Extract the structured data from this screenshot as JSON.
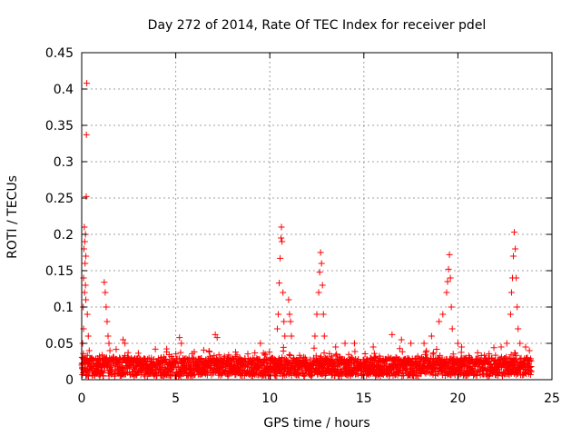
{
  "chart_data": {
    "type": "scatter",
    "title": "Day 272 of 2014, Rate Of TEC Index for receiver pdel",
    "xlabel": "GPS time / hours",
    "ylabel": "ROTI / TECUs",
    "xlim": [
      0,
      25
    ],
    "ylim": [
      0,
      0.45
    ],
    "xticks": [
      0,
      5,
      10,
      15,
      20,
      25
    ],
    "xtick_labels": [
      "0",
      "5",
      "10",
      "15",
      "20",
      "25"
    ],
    "yticks": [
      0,
      0.05,
      0.1,
      0.15,
      0.2,
      0.25,
      0.3,
      0.35,
      0.4,
      0.45
    ],
    "ytick_labels": [
      "0",
      "0.05",
      "0.1",
      "0.15",
      "0.2",
      "0.25",
      "0.3",
      "0.35",
      "0.4",
      "0.45"
    ],
    "grid": true,
    "marker": "+",
    "color": "#ff0000",
    "data_range_x": [
      0,
      23.9
    ],
    "baseline_band": [
      0.005,
      0.03
    ],
    "series": [
      {
        "name": "ROTI",
        "points": [
          [
            0.0,
            0.02
          ],
          [
            0.05,
            0.05
          ],
          [
            0.08,
            0.1
          ],
          [
            0.1,
            0.14
          ],
          [
            0.12,
            0.18
          ],
          [
            0.14,
            0.21
          ],
          [
            0.16,
            0.19
          ],
          [
            0.18,
            0.16
          ],
          [
            0.2,
            0.13
          ],
          [
            0.22,
            0.11
          ],
          [
            0.24,
            0.252
          ],
          [
            0.25,
            0.337
          ],
          [
            0.27,
            0.408
          ],
          [
            0.3,
            0.09
          ],
          [
            0.35,
            0.06
          ],
          [
            0.4,
            0.04
          ],
          [
            0.1,
            0.07
          ],
          [
            0.15,
            0.12
          ],
          [
            0.2,
            0.2
          ],
          [
            0.22,
            0.17
          ],
          [
            1.2,
            0.134
          ],
          [
            1.25,
            0.12
          ],
          [
            1.3,
            0.1
          ],
          [
            1.35,
            0.08
          ],
          [
            1.4,
            0.06
          ],
          [
            1.45,
            0.05
          ],
          [
            1.5,
            0.04
          ],
          [
            2.2,
            0.055
          ],
          [
            2.3,
            0.05
          ],
          [
            5.2,
            0.058
          ],
          [
            5.3,
            0.05
          ],
          [
            7.1,
            0.062
          ],
          [
            7.2,
            0.058
          ],
          [
            9.5,
            0.05
          ],
          [
            10.4,
            0.07
          ],
          [
            10.45,
            0.09
          ],
          [
            10.5,
            0.133
          ],
          [
            10.55,
            0.167
          ],
          [
            10.6,
            0.195
          ],
          [
            10.62,
            0.21
          ],
          [
            10.65,
            0.19
          ],
          [
            10.7,
            0.12
          ],
          [
            10.75,
            0.08
          ],
          [
            10.8,
            0.06
          ],
          [
            11.0,
            0.11
          ],
          [
            11.05,
            0.09
          ],
          [
            11.1,
            0.08
          ],
          [
            11.15,
            0.06
          ],
          [
            12.4,
            0.06
          ],
          [
            12.5,
            0.09
          ],
          [
            12.6,
            0.12
          ],
          [
            12.65,
            0.148
          ],
          [
            12.7,
            0.175
          ],
          [
            12.75,
            0.16
          ],
          [
            12.8,
            0.13
          ],
          [
            12.85,
            0.09
          ],
          [
            12.9,
            0.06
          ],
          [
            13.5,
            0.045
          ],
          [
            14.0,
            0.05
          ],
          [
            14.5,
            0.05
          ],
          [
            15.5,
            0.045
          ],
          [
            16.5,
            0.062
          ],
          [
            17.0,
            0.055
          ],
          [
            17.5,
            0.05
          ],
          [
            18.2,
            0.05
          ],
          [
            18.6,
            0.06
          ],
          [
            19.0,
            0.08
          ],
          [
            19.2,
            0.09
          ],
          [
            19.4,
            0.12
          ],
          [
            19.45,
            0.135
          ],
          [
            19.5,
            0.152
          ],
          [
            19.55,
            0.172
          ],
          [
            19.6,
            0.14
          ],
          [
            19.65,
            0.1
          ],
          [
            19.7,
            0.07
          ],
          [
            20.0,
            0.05
          ],
          [
            20.2,
            0.045
          ],
          [
            22.3,
            0.045
          ],
          [
            22.6,
            0.05
          ],
          [
            22.8,
            0.09
          ],
          [
            22.85,
            0.12
          ],
          [
            22.9,
            0.14
          ],
          [
            22.95,
            0.17
          ],
          [
            23.0,
            0.203
          ],
          [
            23.05,
            0.18
          ],
          [
            23.1,
            0.14
          ],
          [
            23.15,
            0.1
          ],
          [
            23.2,
            0.07
          ],
          [
            23.3,
            0.05
          ],
          [
            23.6,
            0.045
          ],
          [
            23.8,
            0.04
          ]
        ]
      }
    ]
  }
}
